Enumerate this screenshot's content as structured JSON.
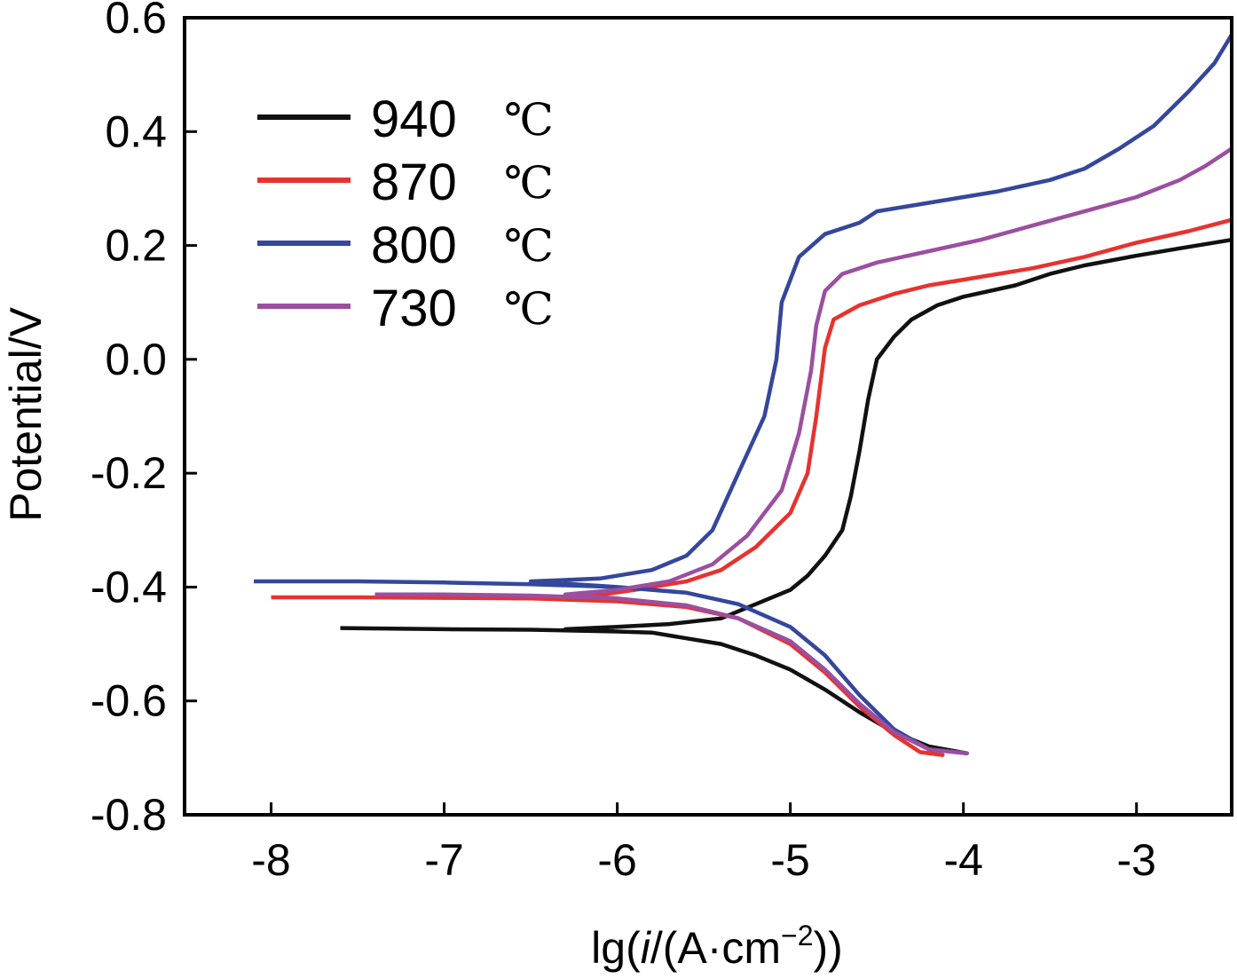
{
  "chart_data": {
    "type": "line",
    "xlabel": {
      "pre": "lg(",
      "italic": "i",
      "mid": "/(A·cm",
      "sup": "−2",
      "post": "))"
    },
    "ylabel": "Potential/V",
    "xlim": [
      -8.5,
      -2.45
    ],
    "ylim": [
      -0.8,
      0.6
    ],
    "x_ticks": [
      -8,
      -7,
      -6,
      -5,
      -4,
      -3
    ],
    "y_ticks": [
      -0.8,
      -0.6,
      -0.4,
      -0.2,
      0.0,
      0.2,
      0.4,
      0.6
    ],
    "x_tick_labels": [
      "-8",
      "-7",
      "-6",
      "-5",
      "-4",
      "-3"
    ],
    "y_tick_labels": [
      "-0.8",
      "-0.6",
      "-0.4",
      "-0.2",
      "0.0",
      "0.2",
      "0.4",
      "0.6"
    ],
    "legend_position": "top-left",
    "grid": false,
    "series": [
      {
        "name": "940",
        "unit": "℃",
        "color": "#111111",
        "points": [
          [
            -7.6,
            -0.472
          ],
          [
            -7.0,
            -0.474
          ],
          [
            -6.5,
            -0.475
          ],
          [
            -6.0,
            -0.478
          ],
          [
            -5.8,
            -0.48
          ],
          [
            -5.6,
            -0.49
          ],
          [
            -5.4,
            -0.5
          ],
          [
            -5.2,
            -0.52
          ],
          [
            -5.0,
            -0.545
          ],
          [
            -4.8,
            -0.58
          ],
          [
            -4.6,
            -0.62
          ],
          [
            -4.4,
            -0.655
          ],
          [
            -4.2,
            -0.68
          ],
          [
            -3.98,
            -0.692
          ],
          [
            -4.2,
            -0.68
          ],
          [
            -4.4,
            -0.655
          ],
          [
            -4.6,
            -0.62
          ],
          [
            -4.8,
            -0.58
          ],
          [
            -5.0,
            -0.545
          ],
          [
            -5.2,
            -0.52
          ],
          [
            -5.4,
            -0.5
          ],
          [
            -5.6,
            -0.49
          ],
          [
            -5.8,
            -0.48
          ],
          [
            -6.0,
            -0.478
          ],
          [
            -6.3,
            -0.474
          ],
          [
            -6.0,
            -0.47
          ],
          [
            -5.7,
            -0.465
          ],
          [
            -5.4,
            -0.455
          ],
          [
            -5.2,
            -0.43
          ],
          [
            -5.0,
            -0.405
          ],
          [
            -4.9,
            -0.38
          ],
          [
            -4.8,
            -0.345
          ],
          [
            -4.7,
            -0.3
          ],
          [
            -4.65,
            -0.24
          ],
          [
            -4.6,
            -0.16
          ],
          [
            -4.55,
            -0.07
          ],
          [
            -4.5,
            0.0
          ],
          [
            -4.4,
            0.04
          ],
          [
            -4.3,
            0.07
          ],
          [
            -4.15,
            0.095
          ],
          [
            -4.0,
            0.11
          ],
          [
            -3.7,
            0.13
          ],
          [
            -3.5,
            0.15
          ],
          [
            -3.3,
            0.165
          ],
          [
            -3.0,
            0.182
          ],
          [
            -2.75,
            0.195
          ],
          [
            -2.45,
            0.21
          ]
        ]
      },
      {
        "name": "870",
        "unit": "℃",
        "color": "#e8322e",
        "points": [
          [
            -8.0,
            -0.418
          ],
          [
            -7.5,
            -0.418
          ],
          [
            -7.0,
            -0.419
          ],
          [
            -6.5,
            -0.42
          ],
          [
            -6.0,
            -0.425
          ],
          [
            -5.6,
            -0.435
          ],
          [
            -5.3,
            -0.455
          ],
          [
            -5.0,
            -0.5
          ],
          [
            -4.8,
            -0.55
          ],
          [
            -4.6,
            -0.61
          ],
          [
            -4.4,
            -0.66
          ],
          [
            -4.25,
            -0.69
          ],
          [
            -4.12,
            -0.695
          ],
          [
            -4.25,
            -0.69
          ],
          [
            -4.4,
            -0.66
          ],
          [
            -4.6,
            -0.61
          ],
          [
            -4.8,
            -0.55
          ],
          [
            -5.0,
            -0.5
          ],
          [
            -5.3,
            -0.455
          ],
          [
            -5.6,
            -0.435
          ],
          [
            -6.0,
            -0.425
          ],
          [
            -6.2,
            -0.418
          ],
          [
            -5.9,
            -0.405
          ],
          [
            -5.6,
            -0.39
          ],
          [
            -5.4,
            -0.37
          ],
          [
            -5.2,
            -0.33
          ],
          [
            -5.0,
            -0.27
          ],
          [
            -4.9,
            -0.2
          ],
          [
            -4.85,
            -0.1
          ],
          [
            -4.8,
            0.02
          ],
          [
            -4.75,
            0.07
          ],
          [
            -4.6,
            0.095
          ],
          [
            -4.4,
            0.115
          ],
          [
            -4.2,
            0.13
          ],
          [
            -4.0,
            0.14
          ],
          [
            -3.6,
            0.16
          ],
          [
            -3.3,
            0.18
          ],
          [
            -3.0,
            0.205
          ],
          [
            -2.7,
            0.225
          ],
          [
            -2.45,
            0.245
          ]
        ]
      },
      {
        "name": "800",
        "unit": "℃",
        "color": "#35479c",
        "points": [
          [
            -8.1,
            -0.39
          ],
          [
            -7.5,
            -0.39
          ],
          [
            -7.0,
            -0.392
          ],
          [
            -6.5,
            -0.395
          ],
          [
            -6.0,
            -0.4
          ],
          [
            -5.6,
            -0.41
          ],
          [
            -5.3,
            -0.43
          ],
          [
            -5.0,
            -0.47
          ],
          [
            -4.8,
            -0.52
          ],
          [
            -4.6,
            -0.59
          ],
          [
            -4.4,
            -0.65
          ],
          [
            -4.2,
            -0.685
          ],
          [
            -3.98,
            -0.692
          ],
          [
            -4.2,
            -0.685
          ],
          [
            -4.4,
            -0.65
          ],
          [
            -4.6,
            -0.59
          ],
          [
            -4.8,
            -0.52
          ],
          [
            -5.0,
            -0.47
          ],
          [
            -5.3,
            -0.43
          ],
          [
            -5.6,
            -0.41
          ],
          [
            -6.0,
            -0.4
          ],
          [
            -6.5,
            -0.39
          ],
          [
            -6.1,
            -0.385
          ],
          [
            -5.8,
            -0.37
          ],
          [
            -5.6,
            -0.345
          ],
          [
            -5.45,
            -0.3
          ],
          [
            -5.3,
            -0.2
          ],
          [
            -5.15,
            -0.1
          ],
          [
            -5.08,
            0.0
          ],
          [
            -5.05,
            0.1
          ],
          [
            -4.95,
            0.18
          ],
          [
            -4.8,
            0.22
          ],
          [
            -4.6,
            0.24
          ],
          [
            -4.5,
            0.26
          ],
          [
            -4.2,
            0.275
          ],
          [
            -3.8,
            0.295
          ],
          [
            -3.5,
            0.315
          ],
          [
            -3.3,
            0.335
          ],
          [
            -3.1,
            0.37
          ],
          [
            -2.9,
            0.41
          ],
          [
            -2.7,
            0.47
          ],
          [
            -2.55,
            0.52
          ],
          [
            -2.45,
            0.57
          ]
        ]
      },
      {
        "name": "730",
        "unit": "℃",
        "color": "#9b4fa0",
        "points": [
          [
            -7.4,
            -0.413
          ],
          [
            -7.0,
            -0.413
          ],
          [
            -6.5,
            -0.415
          ],
          [
            -6.0,
            -0.42
          ],
          [
            -5.6,
            -0.432
          ],
          [
            -5.3,
            -0.455
          ],
          [
            -5.0,
            -0.495
          ],
          [
            -4.8,
            -0.545
          ],
          [
            -4.6,
            -0.605
          ],
          [
            -4.4,
            -0.655
          ],
          [
            -4.2,
            -0.685
          ],
          [
            -3.98,
            -0.692
          ],
          [
            -4.2,
            -0.685
          ],
          [
            -4.4,
            -0.655
          ],
          [
            -4.6,
            -0.605
          ],
          [
            -4.8,
            -0.545
          ],
          [
            -5.0,
            -0.495
          ],
          [
            -5.3,
            -0.455
          ],
          [
            -5.6,
            -0.432
          ],
          [
            -6.0,
            -0.42
          ],
          [
            -6.3,
            -0.413
          ],
          [
            -6.0,
            -0.405
          ],
          [
            -5.7,
            -0.39
          ],
          [
            -5.45,
            -0.36
          ],
          [
            -5.25,
            -0.31
          ],
          [
            -5.05,
            -0.23
          ],
          [
            -4.95,
            -0.13
          ],
          [
            -4.88,
            -0.02
          ],
          [
            -4.85,
            0.06
          ],
          [
            -4.8,
            0.12
          ],
          [
            -4.7,
            0.15
          ],
          [
            -4.5,
            0.17
          ],
          [
            -4.2,
            0.19
          ],
          [
            -3.9,
            0.21
          ],
          [
            -3.6,
            0.235
          ],
          [
            -3.3,
            0.26
          ],
          [
            -3.0,
            0.285
          ],
          [
            -2.75,
            0.315
          ],
          [
            -2.6,
            0.34
          ],
          [
            -2.45,
            0.37
          ]
        ]
      }
    ]
  }
}
